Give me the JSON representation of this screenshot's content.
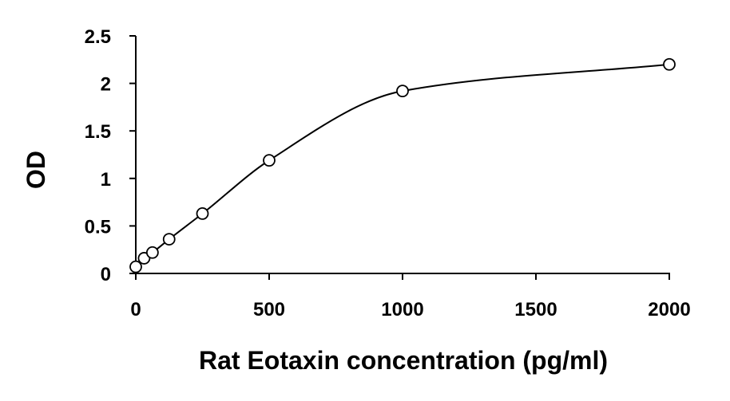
{
  "chart_data": {
    "type": "scatter",
    "title": "",
    "xlabel": "Rat Eotaxin concentration (pg/ml)",
    "ylabel": "OD",
    "xlim": [
      0,
      2000
    ],
    "ylim": [
      0,
      2.5
    ],
    "x_ticks": [
      0,
      500,
      1000,
      1500,
      2000
    ],
    "x_tick_labels": [
      "0",
      "500",
      "1000",
      "1500",
      "2000"
    ],
    "y_ticks": [
      0,
      0.5,
      1,
      1.5,
      2,
      2.5
    ],
    "y_tick_labels": [
      "0",
      "0.5",
      "1",
      "1.5",
      "2",
      "2.5"
    ],
    "grid": false,
    "legend": "none",
    "series": [
      {
        "marker": "open-circle",
        "fit": "smooth-curve",
        "x": [
          0,
          31.25,
          62.5,
          125,
          250,
          500,
          1000,
          2000
        ],
        "y": [
          0.07,
          0.16,
          0.22,
          0.36,
          0.63,
          1.19,
          1.92,
          2.2
        ]
      }
    ],
    "colors": {
      "axis": "#000000",
      "marker": "#000000",
      "curve": "#000000"
    }
  }
}
